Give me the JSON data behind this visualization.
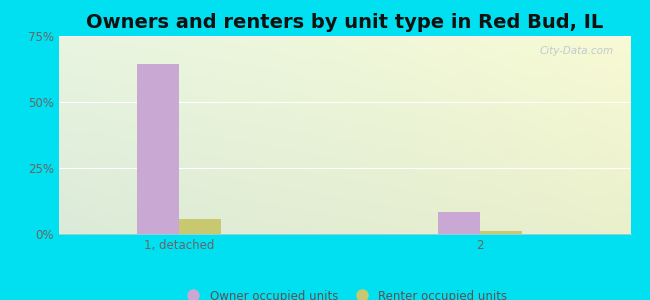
{
  "title": "Owners and renters by unit type in Red Bud, IL",
  "categories": [
    "1, detached",
    "2"
  ],
  "owner_values": [
    64.5,
    8.5
  ],
  "renter_values": [
    5.5,
    1.0
  ],
  "owner_color": "#c9a8d4",
  "renter_color": "#c8c870",
  "ylim": [
    0,
    75
  ],
  "yticks": [
    0,
    25,
    50,
    75
  ],
  "ytick_labels": [
    "0%",
    "25%",
    "50%",
    "75%"
  ],
  "background_outer": "#00e0f0",
  "bar_width": 0.28,
  "legend_labels": [
    "Owner occupied units",
    "Renter occupied units"
  ],
  "watermark": "City-Data.com",
  "title_fontsize": 14,
  "label_fontsize": 8.5
}
